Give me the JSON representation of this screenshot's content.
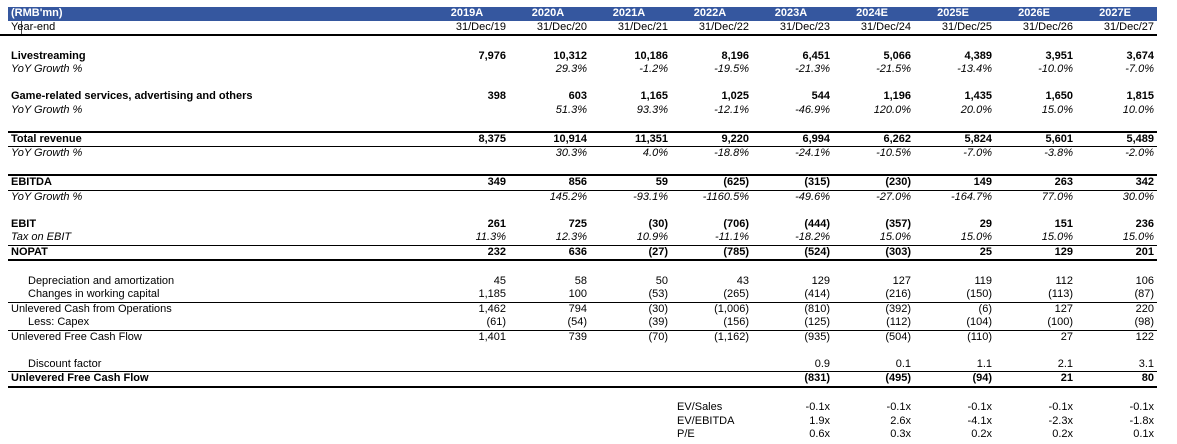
{
  "colors": {
    "header_bg": "#35579F",
    "flag_red": "#FF0000"
  },
  "table": {
    "unit_label": "(RMB'mn)",
    "columns": [
      "2019A",
      "2020A",
      "2021A",
      "2022A",
      "2023A",
      "2024E",
      "2025E",
      "2026E",
      "2027E"
    ],
    "year_end_label": "Year-end",
    "year_end_values": [
      "31/Dec/19",
      "31/Dec/20",
      "31/Dec/21",
      "31/Dec/22",
      "31/Dec/23",
      "31/Dec/24",
      "31/Dec/25",
      "31/Dec/26",
      "31/Dec/27"
    ],
    "rows": [
      {
        "type": "spacer"
      },
      {
        "label": "Livestreaming",
        "bold": true,
        "values": [
          "7,976",
          "10,312",
          "10,186",
          "8,196",
          "6,451",
          "5,066",
          "4,389",
          "3,951",
          "3,674"
        ]
      },
      {
        "label": "YoY Growth %",
        "italic": true,
        "values": [
          "",
          "29.3%",
          "-1.2%",
          "-19.5%",
          "-21.3%",
          "-21.5%",
          "-13.4%",
          "-10.0%",
          "-7.0%"
        ]
      },
      {
        "type": "spacer"
      },
      {
        "label": "Game-related services, advertising and others",
        "bold": true,
        "values": [
          "398",
          "603",
          "1,165",
          "1,025",
          "544",
          "1,196",
          "1,435",
          "1,650",
          "1,815"
        ]
      },
      {
        "label": "YoY Growth %",
        "italic": true,
        "values": [
          "",
          "51.3%",
          "93.3%",
          "-12.1%",
          "-46.9%",
          "120.0%",
          "20.0%",
          "15.0%",
          "10.0%"
        ]
      },
      {
        "type": "spacer"
      },
      {
        "label": "Total revenue",
        "bold": true,
        "border_top": "thick",
        "border_bottom": "thin",
        "values": [
          "8,375",
          "10,914",
          "11,351",
          "9,220",
          "6,994",
          "6,262",
          "5,824",
          "5,601",
          "5,489"
        ]
      },
      {
        "label": "YoY Growth %",
        "italic": true,
        "values": [
          "",
          "30.3%",
          "4.0%",
          "-18.8%",
          "-24.1%",
          "-10.5%",
          "-7.0%",
          "-3.8%",
          "-2.0%"
        ]
      },
      {
        "type": "spacer"
      },
      {
        "label": "EBITDA",
        "bold": true,
        "border_top": "thick",
        "border_bottom": "thin",
        "values": [
          "349",
          "856",
          "59",
          "(625)",
          "(315)",
          "(230)",
          "149",
          "263",
          "342"
        ]
      },
      {
        "label": "YoY Growth %",
        "italic": true,
        "values": [
          "",
          "145.2%",
          "-93.1%",
          "-1160.5%",
          "-49.6%",
          "-27.0%",
          "-164.7%",
          "77.0%",
          "30.0%"
        ]
      },
      {
        "type": "spacer"
      },
      {
        "label": "EBIT",
        "bold": true,
        "values": [
          "261",
          "725",
          "(30)",
          "(706)",
          "(444)",
          "(357)",
          "29",
          "151",
          "236"
        ]
      },
      {
        "label": "Tax on EBIT",
        "italic": true,
        "border_bottom": "thin",
        "values": [
          "11.3%",
          "12.3%",
          "10.9%",
          "-11.1%",
          "-18.2%",
          "15.0%",
          "15.0%",
          "15.0%",
          "15.0%"
        ]
      },
      {
        "label": "NOPAT",
        "bold": true,
        "border_bottom": "thick",
        "values": [
          "232",
          "636",
          "(27)",
          "(785)",
          "(524)",
          "(303)",
          "25",
          "129",
          "201"
        ]
      },
      {
        "type": "spacer"
      },
      {
        "label": "Depreciation and amortization",
        "indent": true,
        "values": [
          "45",
          "58",
          "50",
          "43",
          "129",
          "127",
          "119",
          "112",
          "106"
        ]
      },
      {
        "label": "Changes in working capital",
        "indent": true,
        "border_bottom": "thin",
        "values": [
          "1,185",
          "100",
          "(53)",
          "(265)",
          "(414)",
          "(216)",
          "(150)",
          "(113)",
          "(87)"
        ]
      },
      {
        "label": "Unlevered Cash from Operations",
        "flag": true,
        "values": [
          "1,462",
          "794",
          "(30)",
          "(1,006)",
          "(810)",
          "(392)",
          "(6)",
          "127",
          "220"
        ]
      },
      {
        "label": "Less: Capex",
        "indent": true,
        "border_bottom": "thin",
        "values": [
          "(61)",
          "(54)",
          "(39)",
          "(156)",
          "(125)",
          "(112)",
          "(104)",
          "(100)",
          "(98)"
        ]
      },
      {
        "label": "Unlevered Free Cash Flow",
        "values": [
          "1,401",
          "739",
          "(70)",
          "(1,162)",
          "(935)",
          "(504)",
          "(110)",
          "27",
          "122"
        ]
      },
      {
        "type": "spacer"
      },
      {
        "label": "Discount factor",
        "indent": true,
        "border_bottom": "thin",
        "values": [
          "",
          "",
          "",
          "",
          "0.9",
          "0.1",
          "1.1",
          "2.1",
          "3.1"
        ]
      },
      {
        "label": "Unlevered Free Cash Flow",
        "bold": true,
        "border_bottom": "thick",
        "values": [
          "",
          "",
          "",
          "",
          "(831)",
          "(495)",
          "(94)",
          "21",
          "80"
        ]
      },
      {
        "type": "spacer"
      },
      {
        "label": "EV/Sales",
        "label_col": 3,
        "values": [
          "",
          "",
          "",
          "",
          "-0.1x",
          "-0.1x",
          "-0.1x",
          "-0.1x",
          "-0.1x"
        ]
      },
      {
        "label": "EV/EBITDA",
        "label_col": 3,
        "values": [
          "",
          "",
          "",
          "",
          "1.9x",
          "2.6x",
          "-4.1x",
          "-2.3x",
          "-1.8x"
        ]
      },
      {
        "label": "P/E",
        "label_col": 3,
        "values": [
          "",
          "",
          "",
          "",
          "0.6x",
          "0.3x",
          "0.2x",
          "0.2x",
          "0.1x"
        ]
      }
    ]
  }
}
